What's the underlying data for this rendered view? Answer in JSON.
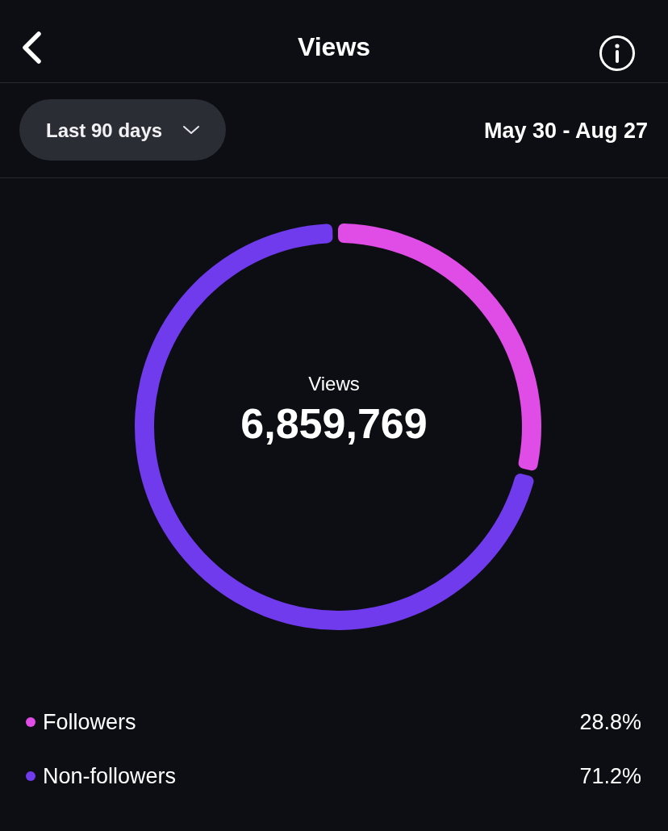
{
  "chart_data": {
    "type": "donut",
    "title": "Views",
    "categories": [
      "Followers",
      "Non-followers"
    ],
    "values": [
      28.8,
      71.2
    ],
    "colors": [
      "#e04ce6",
      "#6f3bec"
    ],
    "value_labels": [
      "28.8%",
      "71.2%"
    ],
    "legend": "bottom",
    "annotations": [
      "Last 90 days",
      "May 30 - Aug 27",
      "Views",
      "6,859,769"
    ]
  }
}
